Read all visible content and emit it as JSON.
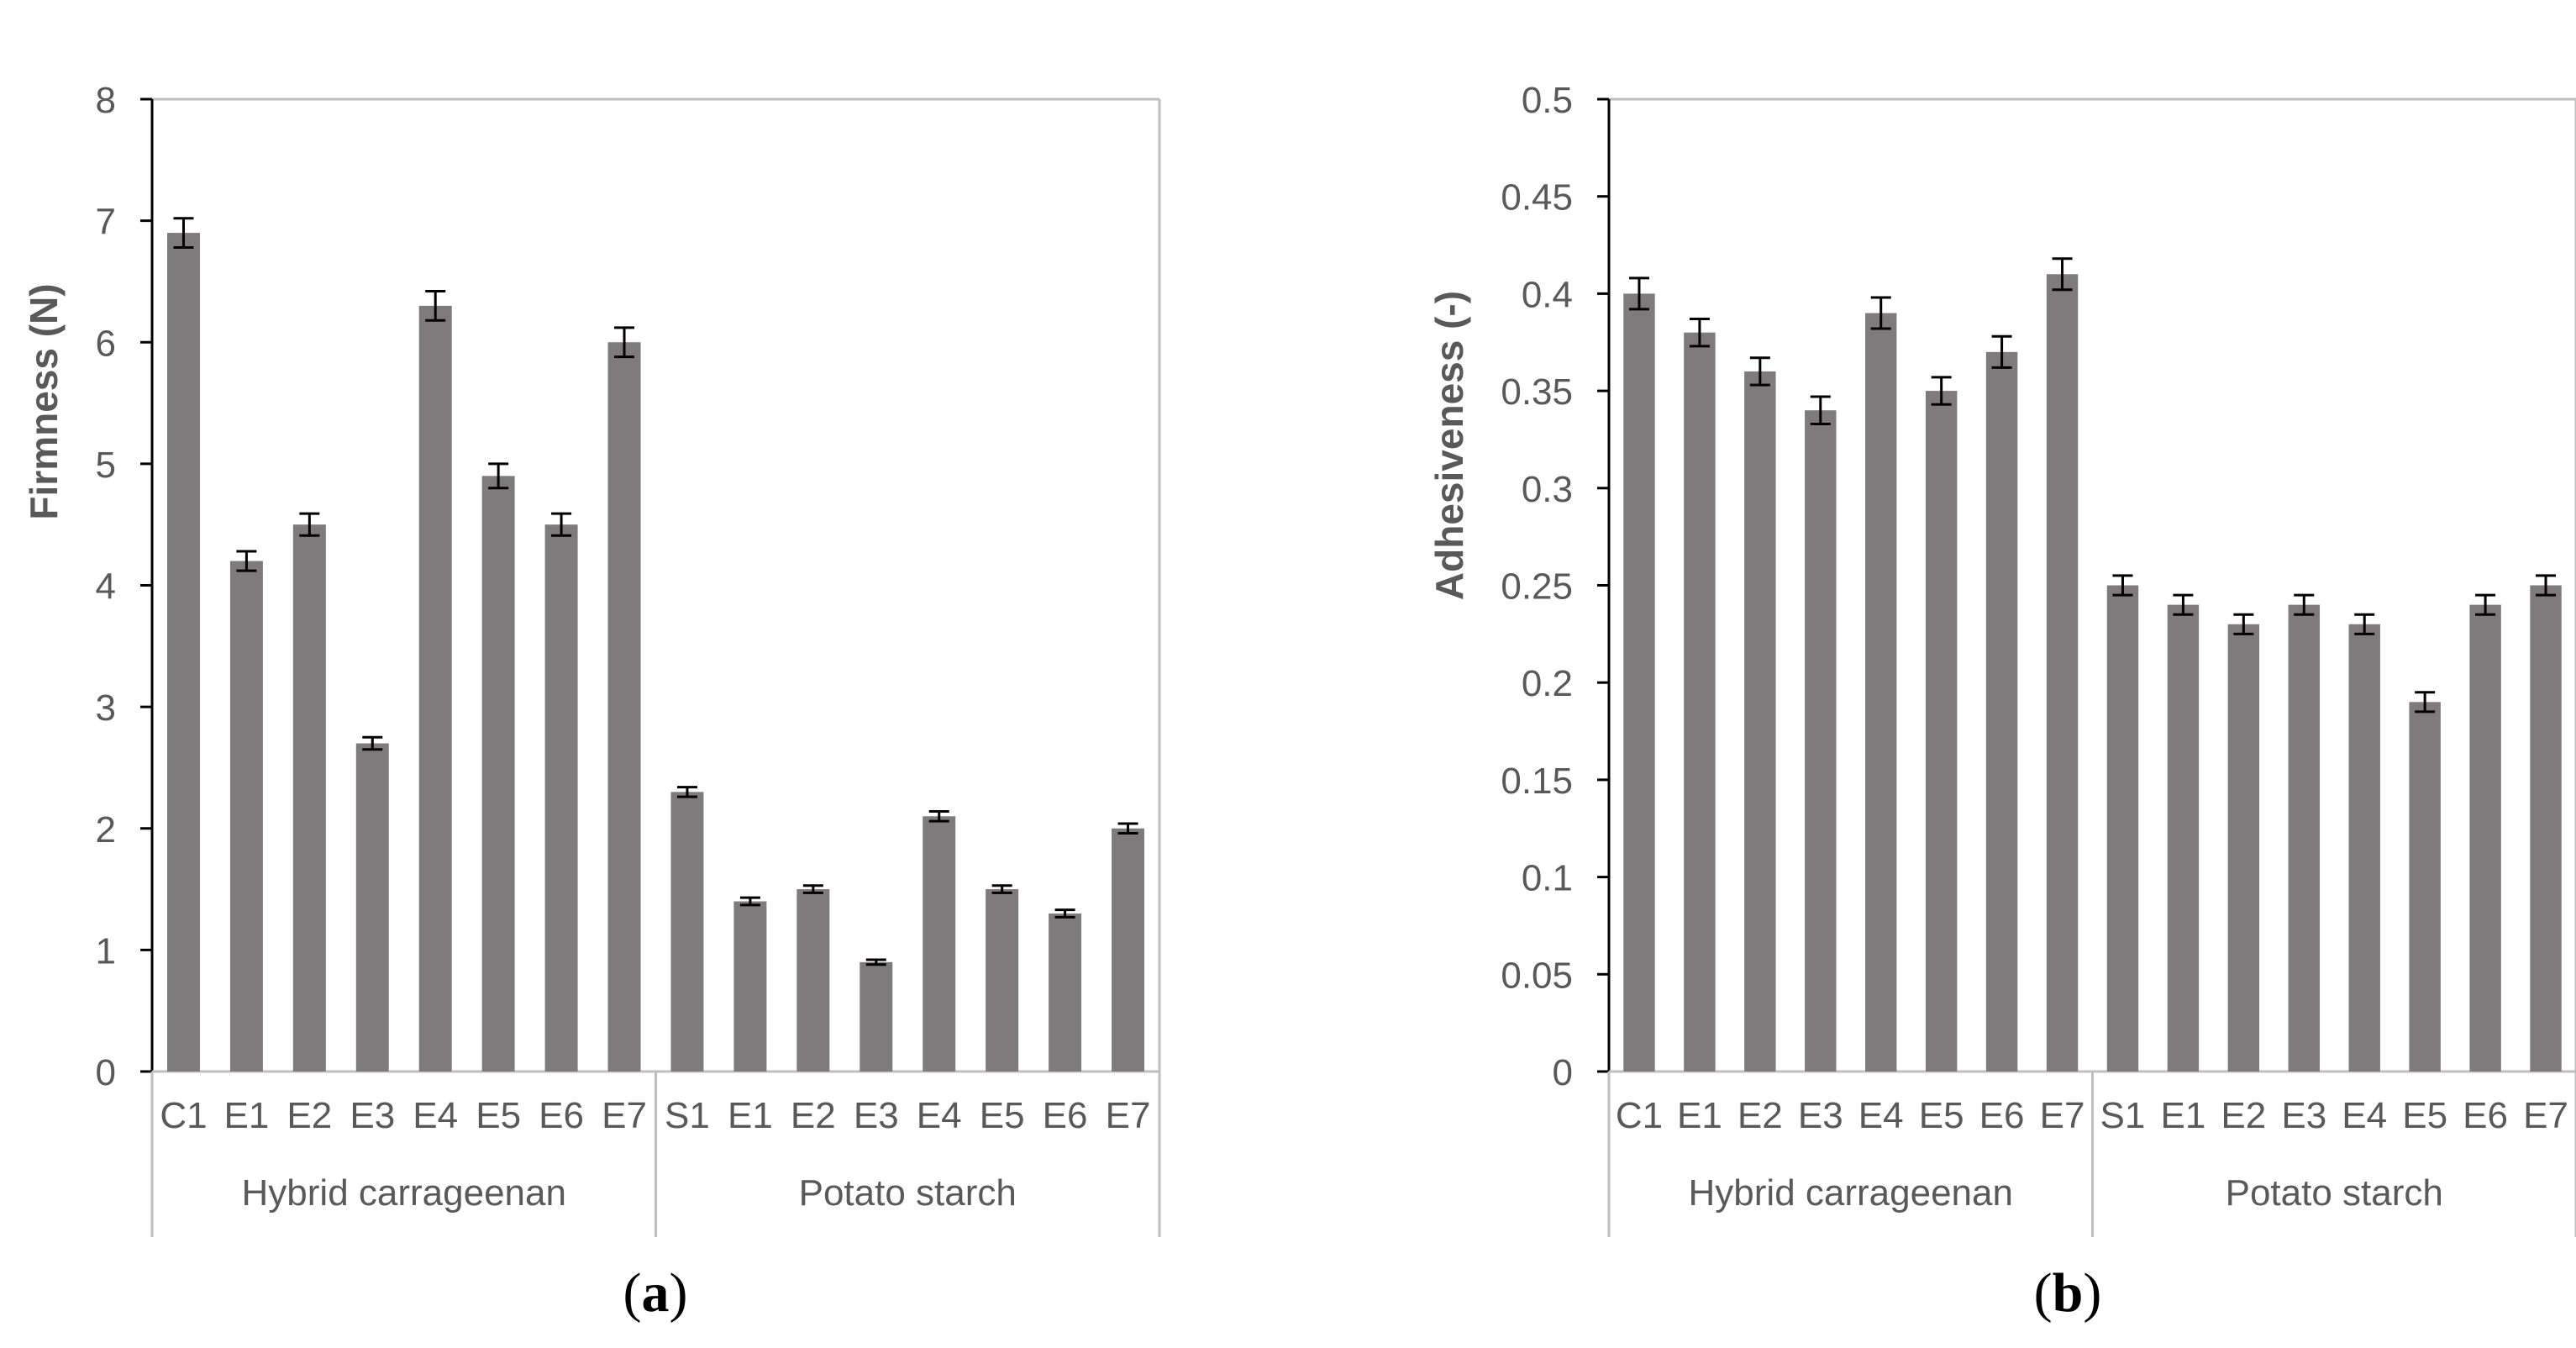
{
  "chart_data": [
    {
      "id": "a",
      "type": "bar",
      "panel_label": "a",
      "ylabel": "Firmness (N)",
      "ylim": [
        0,
        8
      ],
      "yticks": [
        "0",
        "1",
        "2",
        "3",
        "4",
        "5",
        "6",
        "7",
        "8"
      ],
      "ytick_values": [
        0,
        1,
        2,
        3,
        4,
        5,
        6,
        7,
        8
      ],
      "bar_color": "#7f7a7b",
      "groups": [
        {
          "name": "Hybrid carrageenan",
          "categories": [
            "C1",
            "E1",
            "E2",
            "E3",
            "E4",
            "E5",
            "E6",
            "E7"
          ],
          "values": [
            6.9,
            4.2,
            4.5,
            2.7,
            6.3,
            4.9,
            4.5,
            6.0
          ],
          "errors": [
            0.12,
            0.08,
            0.09,
            0.05,
            0.12,
            0.1,
            0.09,
            0.12
          ]
        },
        {
          "name": "Potato starch",
          "categories": [
            "S1",
            "E1",
            "E2",
            "E3",
            "E4",
            "E5",
            "E6",
            "E7"
          ],
          "values": [
            2.3,
            1.4,
            1.5,
            0.9,
            2.1,
            1.5,
            1.3,
            2.0
          ],
          "errors": [
            0.04,
            0.03,
            0.03,
            0.02,
            0.04,
            0.03,
            0.03,
            0.04
          ]
        }
      ]
    },
    {
      "id": "b",
      "type": "bar",
      "panel_label": "b",
      "ylabel": "Adhesiveness (-)",
      "ylim": [
        0,
        0.5
      ],
      "yticks": [
        "0",
        "0.05",
        "0.1",
        "0.15",
        "0.2",
        "0.25",
        "0.3",
        "0.35",
        "0.4",
        "0.45",
        "0.5"
      ],
      "ytick_values": [
        0,
        0.05,
        0.1,
        0.15,
        0.2,
        0.25,
        0.3,
        0.35,
        0.4,
        0.45,
        0.5
      ],
      "bar_color": "#7f7a7b",
      "groups": [
        {
          "name": "Hybrid carrageenan",
          "categories": [
            "C1",
            "E1",
            "E2",
            "E3",
            "E4",
            "E5",
            "E6",
            "E7"
          ],
          "values": [
            0.4,
            0.38,
            0.36,
            0.34,
            0.39,
            0.35,
            0.37,
            0.41
          ],
          "errors": [
            0.008,
            0.007,
            0.007,
            0.007,
            0.008,
            0.007,
            0.008,
            0.008
          ]
        },
        {
          "name": "Potato starch",
          "categories": [
            "S1",
            "E1",
            "E2",
            "E3",
            "E4",
            "E5",
            "E6",
            "E7"
          ],
          "values": [
            0.25,
            0.24,
            0.23,
            0.24,
            0.23,
            0.19,
            0.24,
            0.25
          ],
          "errors": [
            0.005,
            0.005,
            0.005,
            0.005,
            0.005,
            0.005,
            0.005,
            0.005
          ]
        }
      ]
    }
  ]
}
